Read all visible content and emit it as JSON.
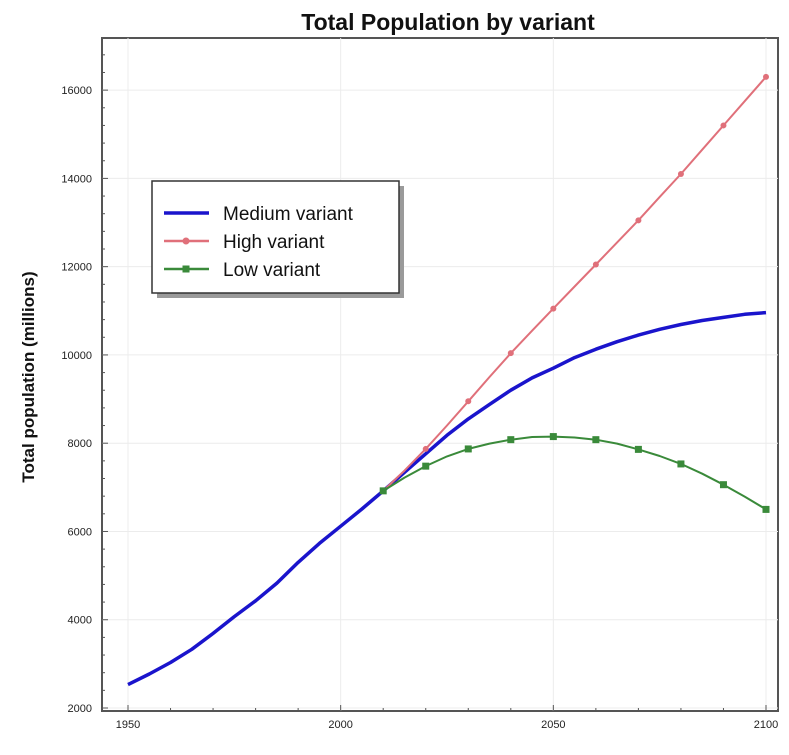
{
  "chart_data": {
    "type": "line",
    "title": "Total Population by variant",
    "xlabel": "",
    "ylabel": "Total population (millions)",
    "xlim": [
      1950,
      2100
    ],
    "ylim": [
      2000,
      17000
    ],
    "x_ticks": [
      1950,
      2000,
      2050,
      2100
    ],
    "y_ticks": [
      2000,
      4000,
      6000,
      8000,
      10000,
      12000,
      14000,
      16000
    ],
    "x_tick_labels": [
      "1950",
      "2000",
      "2050",
      "2100"
    ],
    "y_tick_labels": [
      "2000",
      "4000",
      "6000",
      "8000",
      "10000",
      "12000",
      "14000",
      "16000"
    ],
    "grid": true,
    "legend_position": "upper-left",
    "series": [
      {
        "name": "Medium variant",
        "color": "#1a14cc",
        "marker": "none",
        "x": [
          1950,
          1955,
          1960,
          1965,
          1970,
          1975,
          1980,
          1985,
          1990,
          1995,
          2000,
          2005,
          2010,
          2015,
          2020,
          2025,
          2030,
          2035,
          2040,
          2045,
          2050,
          2055,
          2060,
          2065,
          2070,
          2075,
          2080,
          2085,
          2090,
          2095,
          2100
        ],
        "y": [
          2530,
          2770,
          3030,
          3330,
          3690,
          4070,
          4430,
          4830,
          5300,
          5730,
          6120,
          6510,
          6920,
          7340,
          7760,
          8180,
          8550,
          8880,
          9200,
          9480,
          9700,
          9940,
          10130,
          10300,
          10450,
          10580,
          10690,
          10780,
          10850,
          10920,
          10960
        ]
      },
      {
        "name": "High variant",
        "color": "#e0707a",
        "marker": "circle",
        "x": [
          2010,
          2015,
          2020,
          2025,
          2030,
          2035,
          2040,
          2045,
          2050,
          2055,
          2060,
          2065,
          2070,
          2075,
          2080,
          2085,
          2090,
          2095,
          2100
        ],
        "y": [
          6920,
          7380,
          7870,
          8400,
          8950,
          9500,
          10040,
          10550,
          11050,
          11550,
          12050,
          12550,
          13050,
          13580,
          14100,
          14650,
          15200,
          15750,
          16300
        ]
      },
      {
        "name": "Low variant",
        "color": "#3a8a3a",
        "marker": "square",
        "x": [
          2010,
          2015,
          2020,
          2025,
          2030,
          2035,
          2040,
          2045,
          2050,
          2055,
          2060,
          2065,
          2070,
          2075,
          2080,
          2085,
          2090,
          2095,
          2100
        ],
        "y": [
          6920,
          7220,
          7480,
          7700,
          7870,
          7990,
          8080,
          8140,
          8150,
          8130,
          8080,
          7990,
          7860,
          7710,
          7530,
          7310,
          7060,
          6790,
          6500
        ]
      }
    ]
  }
}
